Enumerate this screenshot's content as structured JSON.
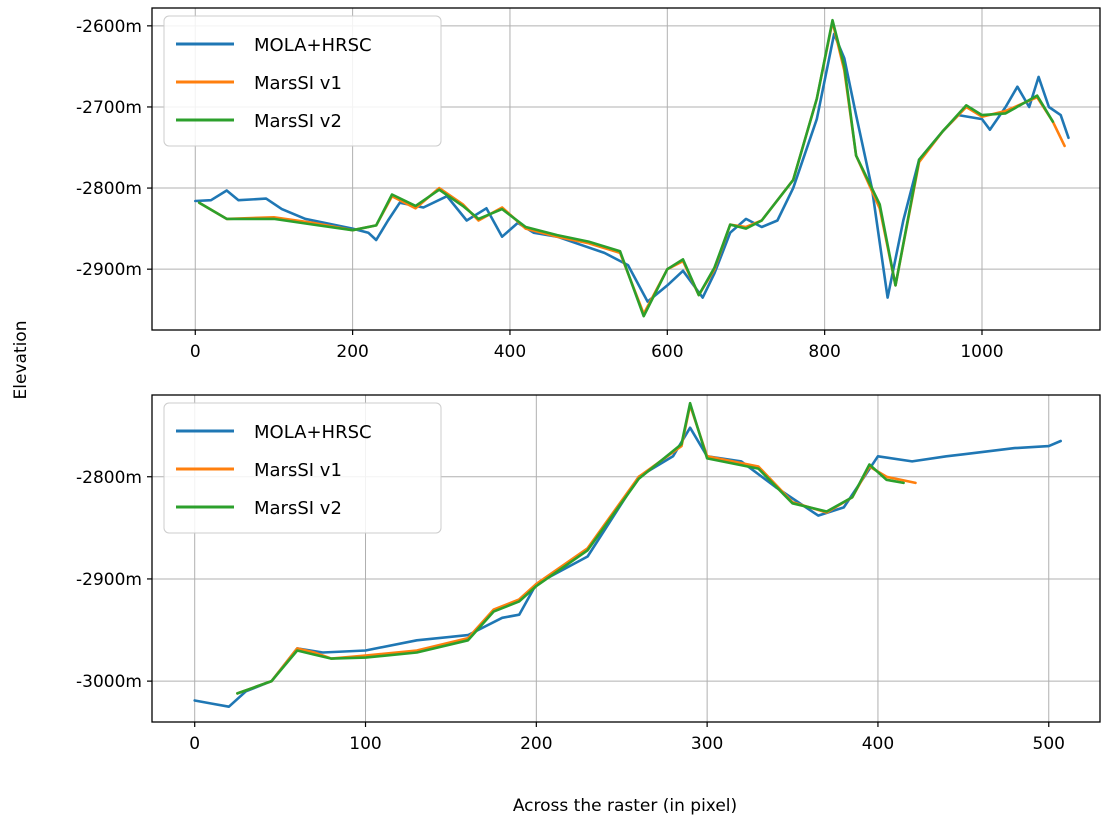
{
  "chart_data": [
    {
      "type": "line",
      "xlim": [
        -55,
        1150
      ],
      "ylim": [
        -2975,
        -2578
      ],
      "x_ticks": [
        0,
        200,
        400,
        600,
        800,
        1000
      ],
      "x_tick_labels": [
        "0",
        "200",
        "400",
        "600",
        "800",
        "1000"
      ],
      "y_ticks": [
        -2600,
        -2700,
        -2800,
        -2900
      ],
      "y_tick_labels": [
        "-2600m",
        "-2700m",
        "-2800m",
        "-2900m"
      ],
      "grid": true,
      "legend_placement": "top-left",
      "series": [
        {
          "name": "MOLA+HRSC",
          "color": "#1f77b4",
          "points": [
            [
              0,
              -2816
            ],
            [
              20,
              -2815
            ],
            [
              40,
              -2803
            ],
            [
              55,
              -2815
            ],
            [
              90,
              -2813
            ],
            [
              110,
              -2826
            ],
            [
              140,
              -2838
            ],
            [
              180,
              -2846
            ],
            [
              200,
              -2850
            ],
            [
              220,
              -2855
            ],
            [
              230,
              -2864
            ],
            [
              245,
              -2840
            ],
            [
              260,
              -2818
            ],
            [
              290,
              -2824
            ],
            [
              320,
              -2810
            ],
            [
              345,
              -2840
            ],
            [
              370,
              -2825
            ],
            [
              390,
              -2860
            ],
            [
              410,
              -2843
            ],
            [
              430,
              -2855
            ],
            [
              460,
              -2860
            ],
            [
              490,
              -2870
            ],
            [
              520,
              -2880
            ],
            [
              550,
              -2895
            ],
            [
              575,
              -2940
            ],
            [
              600,
              -2920
            ],
            [
              620,
              -2902
            ],
            [
              645,
              -2935
            ],
            [
              660,
              -2905
            ],
            [
              680,
              -2855
            ],
            [
              700,
              -2838
            ],
            [
              720,
              -2848
            ],
            [
              740,
              -2840
            ],
            [
              760,
              -2800
            ],
            [
              790,
              -2715
            ],
            [
              812,
              -2610
            ],
            [
              825,
              -2640
            ],
            [
              840,
              -2710
            ],
            [
              860,
              -2800
            ],
            [
              880,
              -2935
            ],
            [
              900,
              -2840
            ],
            [
              920,
              -2765
            ],
            [
              950,
              -2730
            ],
            [
              970,
              -2710
            ],
            [
              1000,
              -2715
            ],
            [
              1010,
              -2728
            ],
            [
              1030,
              -2700
            ],
            [
              1045,
              -2675
            ],
            [
              1060,
              -2700
            ],
            [
              1072,
              -2663
            ],
            [
              1085,
              -2700
            ],
            [
              1100,
              -2710
            ],
            [
              1110,
              -2738
            ]
          ]
        },
        {
          "name": "MarsSI v1",
          "color": "#ff7f0e",
          "points": [
            [
              5,
              -2818
            ],
            [
              40,
              -2838
            ],
            [
              100,
              -2836
            ],
            [
              150,
              -2843
            ],
            [
              200,
              -2852
            ],
            [
              230,
              -2846
            ],
            [
              250,
              -2810
            ],
            [
              280,
              -2825
            ],
            [
              310,
              -2800
            ],
            [
              340,
              -2820
            ],
            [
              360,
              -2840
            ],
            [
              390,
              -2824
            ],
            [
              420,
              -2850
            ],
            [
              460,
              -2860
            ],
            [
              500,
              -2868
            ],
            [
              540,
              -2880
            ],
            [
              570,
              -2955
            ],
            [
              600,
              -2900
            ],
            [
              620,
              -2890
            ],
            [
              640,
              -2932
            ],
            [
              660,
              -2900
            ],
            [
              680,
              -2845
            ],
            [
              700,
              -2848
            ],
            [
              720,
              -2840
            ],
            [
              760,
              -2790
            ],
            [
              790,
              -2690
            ],
            [
              810,
              -2595
            ],
            [
              825,
              -2655
            ],
            [
              840,
              -2760
            ],
            [
              870,
              -2825
            ],
            [
              890,
              -2920
            ],
            [
              920,
              -2768
            ],
            [
              950,
              -2730
            ],
            [
              980,
              -2700
            ],
            [
              1000,
              -2712
            ],
            [
              1030,
              -2705
            ],
            [
              1070,
              -2688
            ],
            [
              1090,
              -2718
            ],
            [
              1105,
              -2748
            ]
          ]
        },
        {
          "name": "MarsSI v2",
          "color": "#2ca02c",
          "points": [
            [
              5,
              -2818
            ],
            [
              40,
              -2838
            ],
            [
              100,
              -2838
            ],
            [
              150,
              -2845
            ],
            [
              200,
              -2852
            ],
            [
              230,
              -2846
            ],
            [
              250,
              -2808
            ],
            [
              280,
              -2822
            ],
            [
              310,
              -2802
            ],
            [
              340,
              -2822
            ],
            [
              360,
              -2838
            ],
            [
              390,
              -2826
            ],
            [
              420,
              -2848
            ],
            [
              460,
              -2858
            ],
            [
              500,
              -2866
            ],
            [
              540,
              -2878
            ],
            [
              570,
              -2958
            ],
            [
              600,
              -2900
            ],
            [
              620,
              -2888
            ],
            [
              640,
              -2932
            ],
            [
              660,
              -2898
            ],
            [
              680,
              -2845
            ],
            [
              700,
              -2850
            ],
            [
              720,
              -2840
            ],
            [
              760,
              -2790
            ],
            [
              790,
              -2690
            ],
            [
              810,
              -2593
            ],
            [
              825,
              -2650
            ],
            [
              840,
              -2760
            ],
            [
              870,
              -2820
            ],
            [
              890,
              -2920
            ],
            [
              920,
              -2765
            ],
            [
              950,
              -2730
            ],
            [
              980,
              -2698
            ],
            [
              1000,
              -2710
            ],
            [
              1030,
              -2708
            ],
            [
              1070,
              -2686
            ],
            [
              1090,
              -2718
            ]
          ]
        }
      ]
    },
    {
      "type": "line",
      "xlim": [
        -25,
        530
      ],
      "ylim": [
        -3040,
        -2720
      ],
      "x_ticks": [
        0,
        100,
        200,
        300,
        400,
        500
      ],
      "x_tick_labels": [
        "0",
        "100",
        "200",
        "300",
        "400",
        "500"
      ],
      "y_ticks": [
        -2800,
        -2900,
        -3000
      ],
      "y_tick_labels": [
        "-2800m",
        "-2900m",
        "-3000m"
      ],
      "grid": true,
      "legend_placement": "top-left",
      "series": [
        {
          "name": "MOLA+HRSC",
          "color": "#1f77b4",
          "points": [
            [
              0,
              -3019
            ],
            [
              10,
              -3022
            ],
            [
              20,
              -3025
            ],
            [
              30,
              -3010
            ],
            [
              45,
              -3000
            ],
            [
              60,
              -2968
            ],
            [
              75,
              -2972
            ],
            [
              100,
              -2970
            ],
            [
              130,
              -2960
            ],
            [
              160,
              -2955
            ],
            [
              180,
              -2938
            ],
            [
              190,
              -2935
            ],
            [
              200,
              -2905
            ],
            [
              230,
              -2878
            ],
            [
              260,
              -2800
            ],
            [
              280,
              -2780
            ],
            [
              290,
              -2752
            ],
            [
              300,
              -2780
            ],
            [
              320,
              -2785
            ],
            [
              340,
              -2810
            ],
            [
              365,
              -2838
            ],
            [
              380,
              -2830
            ],
            [
              400,
              -2780
            ],
            [
              420,
              -2785
            ],
            [
              440,
              -2780
            ],
            [
              450,
              -2778
            ],
            [
              480,
              -2772
            ],
            [
              500,
              -2770
            ],
            [
              507,
              -2765
            ]
          ]
        },
        {
          "name": "MarsSI v1",
          "color": "#ff7f0e",
          "points": [
            [
              25,
              -3012
            ],
            [
              45,
              -3000
            ],
            [
              60,
              -2968
            ],
            [
              70,
              -2972
            ],
            [
              80,
              -2978
            ],
            [
              100,
              -2975
            ],
            [
              130,
              -2970
            ],
            [
              160,
              -2958
            ],
            [
              175,
              -2930
            ],
            [
              190,
              -2920
            ],
            [
              200,
              -2905
            ],
            [
              230,
              -2870
            ],
            [
              260,
              -2800
            ],
            [
              285,
              -2770
            ],
            [
              290,
              -2730
            ],
            [
              300,
              -2780
            ],
            [
              330,
              -2790
            ],
            [
              350,
              -2825
            ],
            [
              370,
              -2835
            ],
            [
              385,
              -2820
            ],
            [
              395,
              -2790
            ],
            [
              405,
              -2800
            ],
            [
              422,
              -2806
            ]
          ]
        },
        {
          "name": "MarsSI v2",
          "color": "#2ca02c",
          "points": [
            [
              25,
              -3012
            ],
            [
              45,
              -3000
            ],
            [
              60,
              -2970
            ],
            [
              70,
              -2974
            ],
            [
              80,
              -2978
            ],
            [
              100,
              -2977
            ],
            [
              130,
              -2972
            ],
            [
              160,
              -2960
            ],
            [
              175,
              -2932
            ],
            [
              190,
              -2922
            ],
            [
              200,
              -2907
            ],
            [
              230,
              -2872
            ],
            [
              260,
              -2802
            ],
            [
              285,
              -2768
            ],
            [
              290,
              -2728
            ],
            [
              300,
              -2782
            ],
            [
              330,
              -2792
            ],
            [
              350,
              -2826
            ],
            [
              370,
              -2834
            ],
            [
              385,
              -2820
            ],
            [
              395,
              -2788
            ],
            [
              405,
              -2803
            ],
            [
              415,
              -2806
            ]
          ]
        }
      ]
    }
  ],
  "y_axis_title": "Elevation",
  "x_axis_title": "Across the raster (in pixel)"
}
